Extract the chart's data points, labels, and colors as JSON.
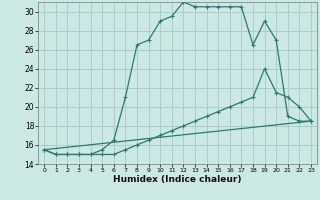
{
  "xlabel": "Humidex (Indice chaleur)",
  "bg_color": "#cce8e4",
  "grid_color": "#aaceca",
  "line_color": "#2a7a6e",
  "xlim": [
    -0.5,
    23.5
  ],
  "ylim": [
    14,
    31
  ],
  "yticks": [
    14,
    16,
    18,
    20,
    22,
    24,
    26,
    28,
    30
  ],
  "xticks": [
    0,
    1,
    2,
    3,
    4,
    5,
    6,
    7,
    8,
    9,
    10,
    11,
    12,
    13,
    14,
    15,
    16,
    17,
    18,
    19,
    20,
    21,
    22,
    23
  ],
  "line1_x": [
    0,
    1,
    2,
    3,
    4,
    5,
    6,
    7,
    8,
    9,
    10,
    11,
    12,
    13,
    14,
    15,
    16,
    17,
    18,
    19,
    20,
    21,
    22,
    23
  ],
  "line1_y": [
    15.5,
    15.0,
    15.0,
    15.0,
    15.0,
    15.5,
    16.5,
    21.0,
    26.5,
    27.0,
    29.0,
    29.5,
    31.0,
    30.5,
    30.5,
    30.5,
    30.5,
    30.5,
    26.5,
    29.0,
    27.0,
    19.0,
    18.5,
    18.5
  ],
  "line2_x": [
    0,
    1,
    2,
    3,
    4,
    5,
    6,
    7,
    8,
    9,
    10,
    11,
    12,
    13,
    14,
    15,
    16,
    17,
    18,
    19,
    20,
    21,
    22,
    23
  ],
  "line2_y": [
    15.5,
    15.0,
    15.0,
    15.0,
    15.0,
    15.0,
    15.0,
    15.5,
    16.0,
    16.5,
    17.0,
    17.5,
    18.0,
    18.5,
    19.0,
    19.5,
    20.0,
    20.5,
    21.0,
    24.0,
    21.5,
    21.0,
    20.0,
    18.5
  ],
  "line3_x": [
    0,
    23
  ],
  "line3_y": [
    15.5,
    18.5
  ]
}
